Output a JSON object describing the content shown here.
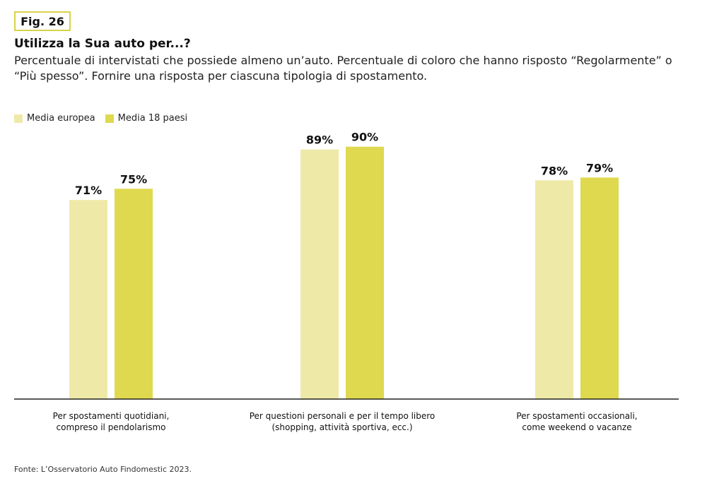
{
  "header": {
    "fig_label": "Fig. 26",
    "title": "Utilizza la Sua auto per...?",
    "subtitle": "Percentuale di intervistati che possiede almeno un’auto. Percentuale di coloro che hanno risposto “Regolarmente” o “Più spesso”. Fornire una risposta per ciascuna tipologia di spostamento."
  },
  "legend": [
    {
      "label": "Media europea",
      "color": "#efe9a8"
    },
    {
      "label": "Media 18 paesi",
      "color": "#dfd94f"
    }
  ],
  "chart_data": {
    "type": "bar",
    "categories": [
      [
        "Per spostamenti quotidiani,",
        "compreso il pendolarismo"
      ],
      [
        "Per questioni personali e per il tempo libero",
        "(shopping, attività sportiva, ecc.)"
      ],
      [
        "Per spostamenti occasionali,",
        "come weekend o vacanze"
      ]
    ],
    "series": [
      {
        "name": "Media europea",
        "values": [
          71,
          89,
          78
        ],
        "labels": [
          "71%",
          "89%",
          "78%"
        ],
        "color": "#efe9a8"
      },
      {
        "name": "Media 18 paesi",
        "values": [
          75,
          90,
          79
        ],
        "labels": [
          "75%",
          "90%",
          "79%"
        ],
        "color": "#dfd94f"
      }
    ],
    "ylim": [
      0,
      100
    ],
    "grid": false,
    "legend_position": "top-left"
  },
  "footer": {
    "source": "Fonte: L’Osservatorio Auto Findomestic 2023."
  }
}
